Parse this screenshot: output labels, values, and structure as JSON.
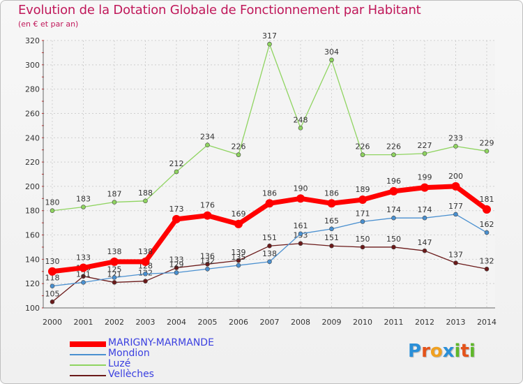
{
  "title": "Evolution de la Dotation Globale de Fonctionnement par Habitant",
  "subtitle": "(en € et par an)",
  "logo": {
    "text": "Proxiti",
    "letters": [
      "P",
      "r",
      "o",
      "x",
      "i",
      "t",
      "i"
    ],
    "colors": [
      "#2a8fd8",
      "#e4531a",
      "#f0a020",
      "#2a8fd8",
      "#5fb82a",
      "#e4531a",
      "#5fb82a"
    ]
  },
  "chart_data": {
    "type": "line",
    "categories": [
      "2000",
      "2001",
      "2002",
      "2003",
      "2004",
      "2005",
      "2006",
      "2007",
      "2008",
      "2009",
      "2010",
      "2011",
      "2012",
      "2013",
      "2014"
    ],
    "ylim": [
      100,
      320
    ],
    "yticks": [
      100,
      120,
      140,
      160,
      180,
      200,
      220,
      240,
      260,
      280,
      300,
      320
    ],
    "grid": true,
    "legend_position": "bottom-left",
    "series": [
      {
        "name": "MARIGNY-MARMANDE",
        "color": "#ff0000",
        "values": [
          130,
          133,
          138,
          138,
          173,
          176,
          169,
          186,
          190,
          186,
          189,
          196,
          199,
          200,
          181
        ]
      },
      {
        "name": "Mondion",
        "color": "#4a90d0",
        "values": [
          118,
          121,
          125,
          128,
          129,
          132,
          135,
          138,
          161,
          165,
          171,
          174,
          174,
          177,
          162
        ]
      },
      {
        "name": "Luzé",
        "color": "#8fd460",
        "values": [
          180,
          183,
          187,
          188,
          212,
          234,
          226,
          317,
          248,
          304,
          226,
          226,
          227,
          233,
          229
        ]
      },
      {
        "name": "Vellèches",
        "color": "#6b1a1a",
        "values": [
          105,
          126,
          121,
          122,
          133,
          136,
          139,
          151,
          153,
          151,
          150,
          150,
          147,
          137,
          132
        ]
      }
    ]
  }
}
